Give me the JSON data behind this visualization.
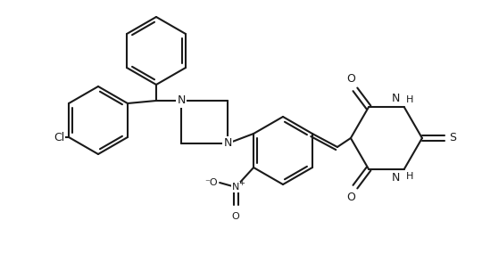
{
  "bg_color": "#ffffff",
  "line_color": "#1a1a1a",
  "bond_lw": 1.5,
  "figsize": [
    5.4,
    3.12
  ],
  "dpi": 100,
  "xlim": [
    0,
    540
  ],
  "ylim": [
    0,
    312
  ]
}
